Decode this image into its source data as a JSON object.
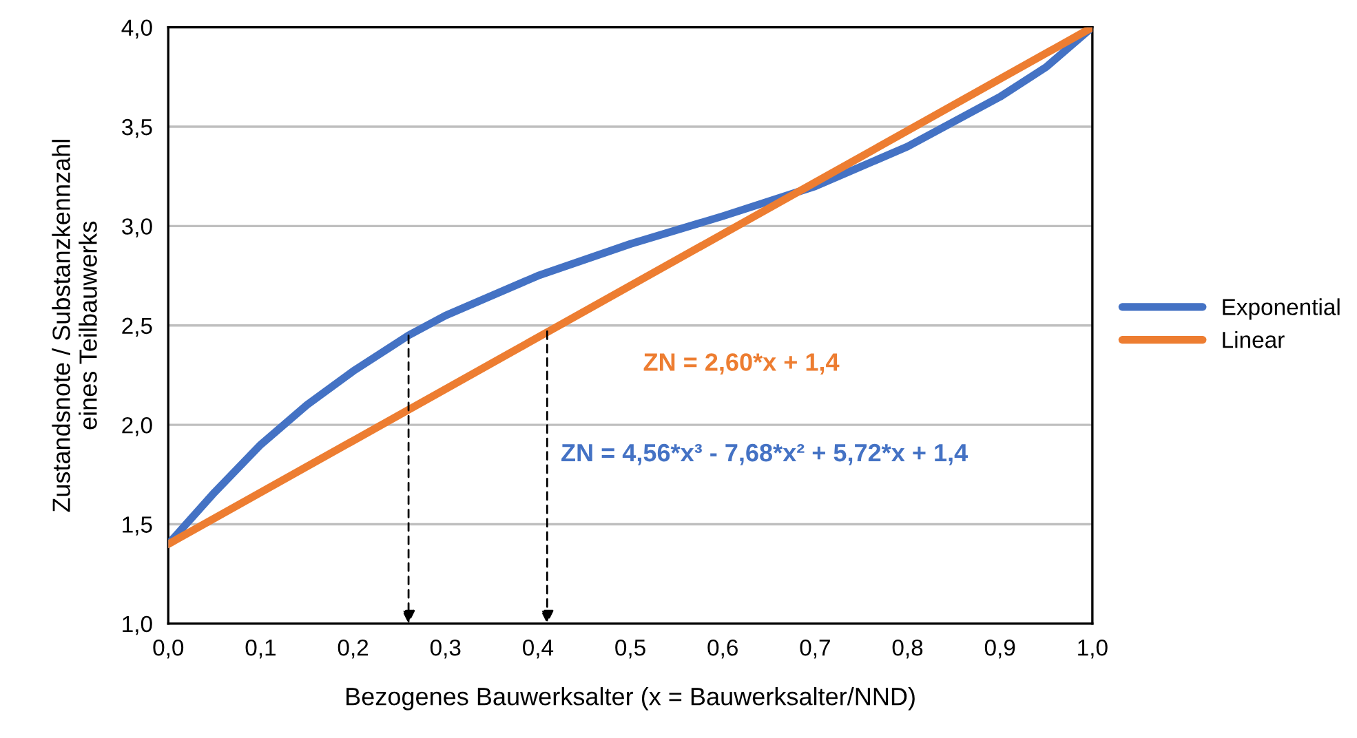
{
  "chart_data": {
    "type": "line",
    "xlabel": "Bezogenes Bauwerksalter (x = Bauwerksalter/NND)",
    "ylabel": "Zustandsnote / Substanzkennzahl\neines Teilbauwerks",
    "x": [
      0,
      0.05,
      0.1,
      0.15,
      0.2,
      0.26,
      0.3,
      0.4,
      0.5,
      0.6,
      0.7,
      0.8,
      0.9,
      0.95,
      1.0
    ],
    "series": [
      {
        "name": "Exponential",
        "color": "#4472c4",
        "values": [
          1.4,
          1.66,
          1.9,
          2.1,
          2.27,
          2.45,
          2.55,
          2.75,
          2.91,
          3.05,
          3.2,
          3.4,
          3.65,
          3.8,
          4.0
        ]
      },
      {
        "name": "Linear",
        "color": "#ed7d31",
        "x": [
          0,
          1.0
        ],
        "values": [
          1.4,
          4.0
        ]
      }
    ],
    "annotations": [
      "ZN = 4,56*x³ - 7,68*x² + 5,72*x + 1,4",
      "ZN = 2,60*x + 1,4"
    ],
    "xlim": [
      0,
      1.0
    ],
    "ylim": [
      1.0,
      4.0
    ],
    "xticks": [
      {
        "value": 0,
        "label": "0,0"
      },
      {
        "value": 0.1,
        "label": "0,1"
      },
      {
        "value": 0.2,
        "label": "0,2"
      },
      {
        "value": 0.3,
        "label": "0,3"
      },
      {
        "value": 0.4,
        "label": "0,4"
      },
      {
        "value": 0.5,
        "label": "0,5"
      },
      {
        "value": 0.6,
        "label": "0,6"
      },
      {
        "value": 0.7,
        "label": "0,7"
      },
      {
        "value": 0.8,
        "label": "0,8"
      },
      {
        "value": 0.9,
        "label": "0,9"
      },
      {
        "value": 1.0,
        "label": "1,0"
      }
    ],
    "yticks": [
      {
        "value": 1.0,
        "label": "1,0"
      },
      {
        "value": 1.5,
        "label": "1,5"
      },
      {
        "value": 2.0,
        "label": "2,0"
      },
      {
        "value": 2.5,
        "label": "2,5"
      },
      {
        "value": 3.0,
        "label": "3,0"
      },
      {
        "value": 3.5,
        "label": "3,5"
      },
      {
        "value": 4.0,
        "label": "4,0"
      }
    ],
    "grid": "y",
    "legend": "right",
    "marker": "none",
    "line_style": "solid"
  }
}
